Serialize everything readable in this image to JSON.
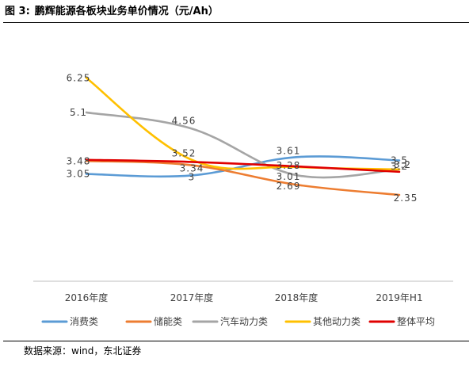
{
  "figure": {
    "label": "图 3:",
    "title": "鹏辉能源各板块业务单价情况（元/Ah）"
  },
  "source": "数据来源：wind，东北证券",
  "chart_data": {
    "type": "line",
    "categories": [
      "2016年度",
      "2017年度",
      "2018年度",
      "2019年H1"
    ],
    "ylim": [
      0,
      7
    ],
    "grid": false,
    "legend_position": "bottom",
    "series": [
      {
        "name": "消费类",
        "values": [
          3.05,
          3.0,
          3.61,
          3.5
        ],
        "labels": [
          "3.05",
          "3",
          "3.61",
          "3.5"
        ],
        "color": "#5b9bd5"
      },
      {
        "name": "储能类",
        "values": [
          3.48,
          3.34,
          2.69,
          2.35
        ],
        "labels": [
          "3.48",
          "3.34",
          "2.69",
          "2.35"
        ],
        "color": "#ed7d31"
      },
      {
        "name": "汽车动力类",
        "values": [
          5.1,
          4.56,
          3.01,
          3.2
        ],
        "labels": [
          "5.1",
          "4.56",
          "3.01",
          "3.2"
        ],
        "color": "#a5a5a5"
      },
      {
        "name": "其他动力类",
        "values": [
          6.25,
          3.52,
          3.28,
          3.2
        ],
        "labels": [
          "6.25",
          "3.52",
          "3.28",
          "3.2"
        ],
        "color": "#ffc000"
      },
      {
        "name": "整体平均",
        "values": [
          3.52,
          3.45,
          3.3,
          3.12
        ],
        "labels": [
          "",
          "",
          "",
          ""
        ],
        "color": "#e00000"
      }
    ]
  }
}
